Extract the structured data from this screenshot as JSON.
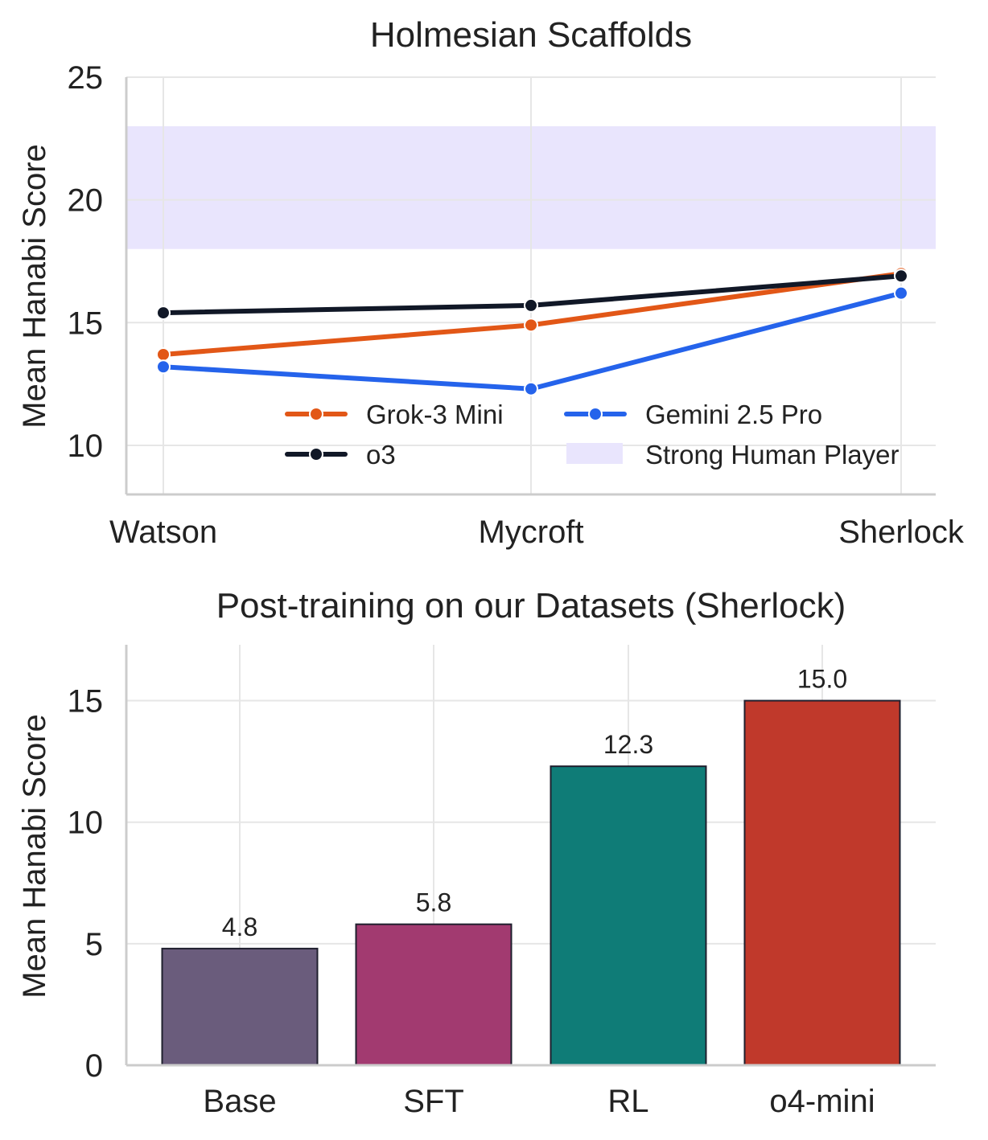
{
  "chart_data": [
    {
      "type": "line",
      "title": "Holmesian Scaffolds",
      "xlabel": "",
      "ylabel": "Mean Hanabi Score",
      "categories": [
        "Watson",
        "Mycroft",
        "Sherlock"
      ],
      "ylim": [
        8,
        25
      ],
      "yticks": [
        "10",
        "15",
        "20",
        "25"
      ],
      "grid": true,
      "legend_position": "bottom-center",
      "series": [
        {
          "name": "Grok-3 Mini",
          "color": "#e25717",
          "values": [
            13.7,
            14.9,
            17.0
          ]
        },
        {
          "name": "o3",
          "color": "#111827",
          "values": [
            15.4,
            15.7,
            16.9
          ]
        },
        {
          "name": "Gemini 2.5 Pro",
          "color": "#2563eb",
          "values": [
            13.2,
            12.3,
            16.2
          ]
        }
      ],
      "bands": [
        {
          "name": "Strong Human Player",
          "color": "#e9e5fd",
          "range": [
            18,
            23
          ]
        }
      ]
    },
    {
      "type": "bar",
      "title": "Post-training on our Datasets (Sherlock)",
      "xlabel": "",
      "ylabel": "Mean Hanabi Score",
      "categories": [
        "Base",
        "SFT",
        "RL",
        "o4-mini"
      ],
      "values": [
        4.8,
        5.8,
        12.3,
        15.0
      ],
      "labels": [
        "4.8",
        "5.8",
        "12.3",
        "15.0"
      ],
      "colors": [
        "#6a5c7c",
        "#a23a70",
        "#0f7c77",
        "#c0392b"
      ],
      "ylim": [
        0,
        17.3
      ],
      "yticks": [
        "0",
        "5",
        "10",
        "15"
      ],
      "grid": true
    }
  ]
}
